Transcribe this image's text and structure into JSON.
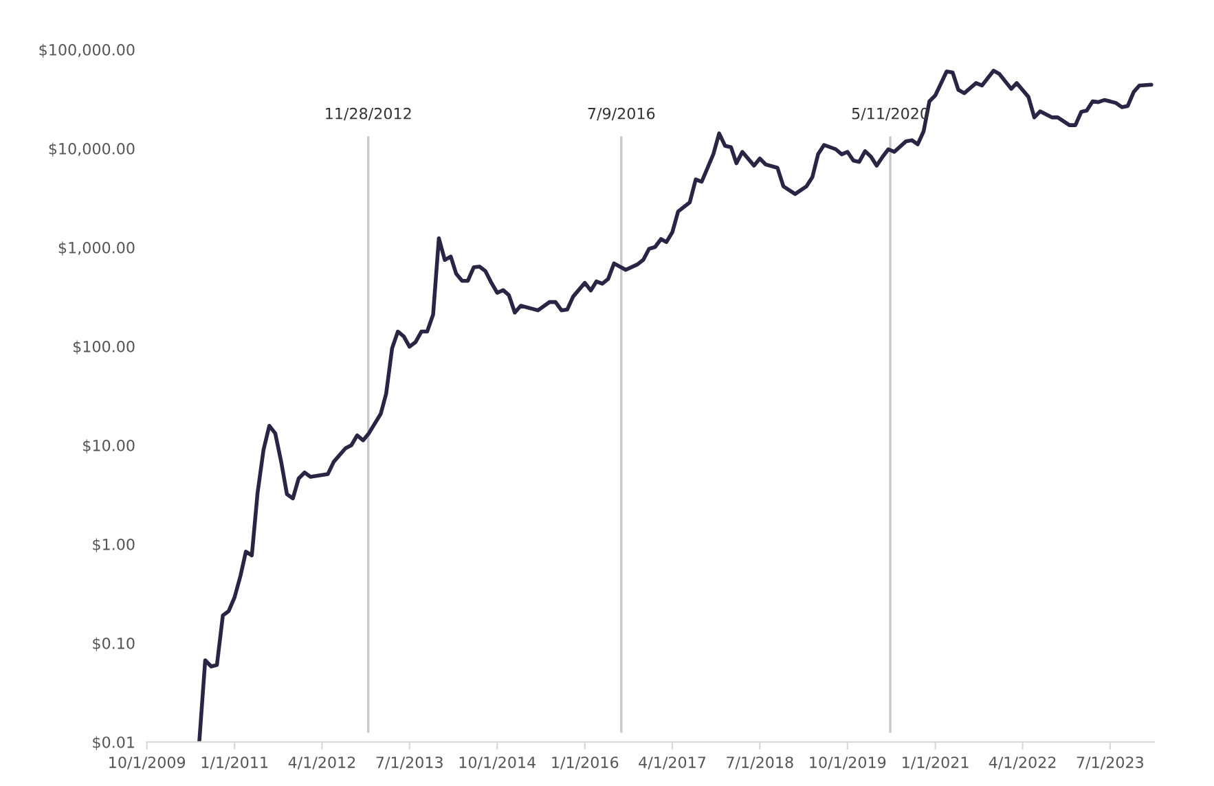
{
  "chart_data": {
    "type": "line",
    "log": "y",
    "grid": false,
    "marker": "none",
    "line_style": "solid",
    "x": [
      "2010-07",
      "2010-08",
      "2010-09",
      "2010-10",
      "2010-11",
      "2010-12",
      "2011-01",
      "2011-02",
      "2011-03",
      "2011-04",
      "2011-05",
      "2011-06",
      "2011-07",
      "2011-08",
      "2011-09",
      "2011-10",
      "2011-11",
      "2011-12",
      "2012-01",
      "2012-02",
      "2012-05",
      "2012-06",
      "2012-08",
      "2012-09",
      "2012-10",
      "2012-11",
      "2012-12",
      "2013-02",
      "2013-03",
      "2013-04",
      "2013-05",
      "2013-06",
      "2013-07",
      "2013-08",
      "2013-09",
      "2013-10",
      "2013-11",
      "2013-12",
      "2014-01",
      "2014-02",
      "2014-03",
      "2014-04",
      "2014-05",
      "2014-06",
      "2014-07",
      "2014-08",
      "2014-09",
      "2014-10",
      "2014-11",
      "2014-12",
      "2015-01",
      "2015-02",
      "2015-05",
      "2015-07",
      "2015-08",
      "2015-09",
      "2015-10",
      "2015-11",
      "2016-01",
      "2016-02",
      "2016-03",
      "2016-04",
      "2016-05",
      "2016-06",
      "2016-08",
      "2016-10",
      "2016-11",
      "2016-12",
      "2017-01",
      "2017-02",
      "2017-03",
      "2017-04",
      "2017-05",
      "2017-07",
      "2017-08",
      "2017-09",
      "2017-11",
      "2017-12",
      "2018-01",
      "2018-02",
      "2018-03",
      "2018-04",
      "2018-06",
      "2018-07",
      "2018-08",
      "2018-10",
      "2018-11",
      "2019-01",
      "2019-03",
      "2019-04",
      "2019-05",
      "2019-06",
      "2019-08",
      "2019-09",
      "2019-10",
      "2019-11",
      "2019-12",
      "2020-01",
      "2020-02",
      "2020-03",
      "2020-04",
      "2020-05",
      "2020-06",
      "2020-08",
      "2020-09",
      "2020-10",
      "2020-11",
      "2020-12",
      "2021-01",
      "2021-03",
      "2021-04",
      "2021-05",
      "2021-06",
      "2021-08",
      "2021-09",
      "2021-11",
      "2021-12",
      "2022-02",
      "2022-03",
      "2022-05",
      "2022-06",
      "2022-07",
      "2022-09",
      "2022-10",
      "2022-12",
      "2023-01",
      "2023-02",
      "2023-03",
      "2023-04",
      "2023-05",
      "2023-06",
      "2023-07",
      "2023-08",
      "2023-09",
      "2023-10",
      "2023-11",
      "2023-12",
      "2024-02"
    ],
    "series": [
      {
        "color": "#2b2545",
        "values": [
          0.01,
          0.067,
          0.058,
          0.06,
          0.19,
          0.21,
          0.29,
          0.48,
          0.84,
          0.77,
          3.3,
          9.0,
          15.7,
          13.2,
          6.8,
          3.2,
          2.9,
          4.6,
          5.3,
          4.8,
          5.1,
          6.8,
          9.3,
          10.0,
          12.6,
          11.2,
          13.2,
          20.8,
          33,
          95,
          141,
          126,
          99,
          110,
          141,
          141,
          209,
          1236,
          745,
          807,
          543,
          459,
          459,
          630,
          640,
          575,
          438,
          347,
          370,
          329,
          219,
          257,
          231,
          280,
          280,
          231,
          235,
          318,
          438,
          366,
          452,
          429,
          478,
          688,
          593,
          672,
          750,
          968,
          1009,
          1213,
          1131,
          1423,
          2302,
          2851,
          4863,
          4606,
          8770,
          14190,
          10620,
          10290,
          7080,
          9230,
          6700,
          7900,
          6880,
          6370,
          4140,
          3460,
          4140,
          5130,
          8770,
          10840,
          9810,
          8720,
          9230,
          7530,
          7310,
          9400,
          8230,
          6700,
          8230,
          9810,
          9230,
          11810,
          12100,
          11000,
          14930,
          29900,
          34400,
          60000,
          58600,
          39100,
          36200,
          45800,
          43300,
          61200,
          56600,
          40000,
          45800,
          33300,
          20600,
          23700,
          20600,
          20600,
          17200,
          17200,
          23500,
          24100,
          29900,
          29400,
          30900,
          29900,
          28800,
          26100,
          26900,
          37200,
          43300,
          44100
        ]
      }
    ],
    "xlim": [
      "2009-10-01",
      "2024-02-15"
    ],
    "xticks": [
      {
        "value": "2009-10-01",
        "label": "10/1/2009"
      },
      {
        "value": "2011-01-01",
        "label": "1/1/2011"
      },
      {
        "value": "2012-04-01",
        "label": "4/1/2012"
      },
      {
        "value": "2013-07-01",
        "label": "7/1/2013"
      },
      {
        "value": "2014-10-01",
        "label": "10/1/2014"
      },
      {
        "value": "2016-01-01",
        "label": "1/1/2016"
      },
      {
        "value": "2017-04-01",
        "label": "4/1/2017"
      },
      {
        "value": "2018-07-01",
        "label": "7/1/2018"
      },
      {
        "value": "2019-10-01",
        "label": "10/1/2019"
      },
      {
        "value": "2021-01-01",
        "label": "1/1/2021"
      },
      {
        "value": "2022-04-01",
        "label": "4/1/2022"
      },
      {
        "value": "2023-07-01",
        "label": "7/1/2023"
      }
    ],
    "ylim": [
      0.01,
      100000
    ],
    "yticks": [
      {
        "value": 0.01,
        "label": "$0.01"
      },
      {
        "value": 0.1,
        "label": "$0.10"
      },
      {
        "value": 1,
        "label": "$1.00"
      },
      {
        "value": 10,
        "label": "$10.00"
      },
      {
        "value": 100,
        "label": "$100.00"
      },
      {
        "value": 1000,
        "label": "$1,000.00"
      },
      {
        "value": 10000,
        "label": "$10,000.00"
      },
      {
        "value": 100000,
        "label": "$100,000.00"
      }
    ],
    "ref_lines": [
      {
        "axis": "x",
        "value": "2012-11-28",
        "label": "11/28/2012",
        "color": "#c8c8c8"
      },
      {
        "axis": "x",
        "value": "2016-07-09",
        "label": "7/9/2016",
        "color": "#c8c8c8"
      },
      {
        "axis": "x",
        "value": "2020-05-11",
        "label": "5/11/2020",
        "color": "#c8c8c8"
      }
    ]
  }
}
